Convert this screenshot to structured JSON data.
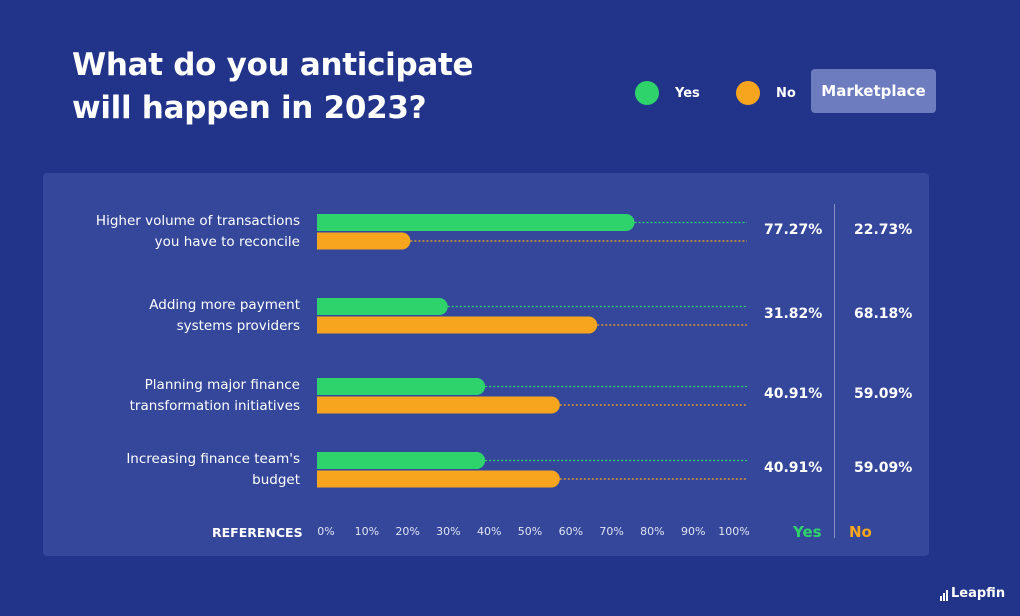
{
  "title_line1": "What do you anticipate",
  "title_line2": "will happen in 2023?",
  "legend": {
    "yes": "Yes",
    "no": "No"
  },
  "tag": "Marketplace",
  "references_label": "REFERENCES",
  "column_headers": {
    "yes": "Yes",
    "no": "No"
  },
  "brand": "Leapfin",
  "colors": {
    "yes": "#2fd36b",
    "no": "#f7a51e",
    "background": "#21348a",
    "panel": "#34479a"
  },
  "chart_data": {
    "type": "bar",
    "orientation": "horizontal",
    "categories": [
      [
        "Higher volume of transactions",
        "you have to reconcile"
      ],
      [
        "Adding more payment",
        "systems providers"
      ],
      [
        "Planning major finance",
        "transformation initiatives"
      ],
      [
        "Increasing finance team's",
        "budget"
      ]
    ],
    "series": [
      {
        "name": "Yes",
        "values": [
          77.27,
          31.82,
          40.91,
          40.91
        ],
        "labels": [
          "77.27%",
          "31.82%",
          "40.91%",
          "40.91%"
        ]
      },
      {
        "name": "No",
        "values": [
          22.73,
          68.18,
          59.09,
          59.09
        ],
        "labels": [
          "22.73%",
          "68.18%",
          "59.09%",
          "59.09%"
        ]
      }
    ],
    "x_ticks": [
      "0%",
      "10%",
      "20%",
      "30%",
      "40%",
      "50%",
      "60%",
      "70%",
      "80%",
      "90%",
      "100%"
    ],
    "xlim": [
      0,
      100
    ],
    "legend_position": "top-right",
    "grid": false
  }
}
